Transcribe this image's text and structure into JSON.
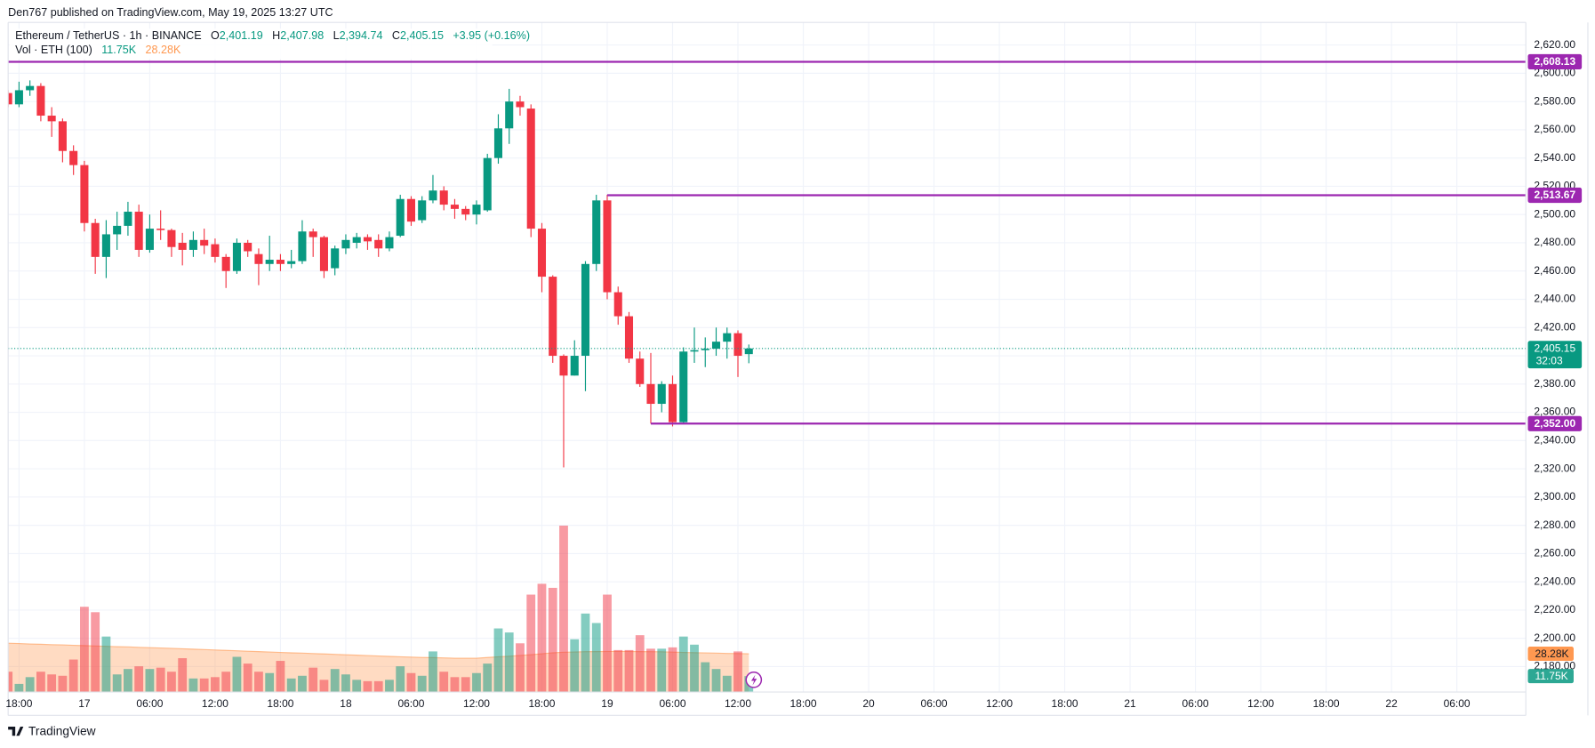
{
  "chart_data": {
    "type": "candlestick",
    "publisher": "Den767 published on TradingView.com, May 19, 2025 13:27 UTC",
    "title": "Ethereum / TetherUS · 1h · BINANCE",
    "ohlc_legend": [
      {
        "key": "O",
        "label": "2,401.19"
      },
      {
        "key": "H",
        "label": "2,407.98"
      },
      {
        "key": "L",
        "label": "2,394.74"
      },
      {
        "key": "C",
        "label": "2,405.15"
      }
    ],
    "change_label": "+3.95 (+0.16%)",
    "up_color": "#089981",
    "down_color": "#f23645",
    "x": [
      "16 17:00",
      "16 18:00",
      "16 19:00",
      "16 20:00",
      "16 21:00",
      "16 22:00",
      "16 23:00",
      "17 00:00",
      "17 01:00",
      "17 02:00",
      "17 03:00",
      "17 04:00",
      "17 05:00",
      "17 06:00",
      "17 07:00",
      "17 08:00",
      "17 09:00",
      "17 10:00",
      "17 11:00",
      "17 12:00",
      "17 13:00",
      "17 14:00",
      "17 15:00",
      "17 16:00",
      "17 17:00",
      "17 18:00",
      "17 19:00",
      "17 20:00",
      "17 21:00",
      "17 22:00",
      "17 23:00",
      "18 00:00",
      "18 01:00",
      "18 02:00",
      "18 03:00",
      "18 04:00",
      "18 05:00",
      "18 06:00",
      "18 07:00",
      "18 08:00",
      "18 09:00",
      "18 10:00",
      "18 11:00",
      "18 12:00",
      "18 13:00",
      "18 14:00",
      "18 15:00",
      "18 16:00",
      "18 17:00",
      "18 18:00",
      "18 19:00",
      "18 20:00",
      "18 21:00",
      "18 22:00",
      "18 23:00",
      "19 00:00",
      "19 01:00",
      "19 02:00",
      "19 03:00",
      "19 04:00",
      "19 05:00",
      "19 06:00",
      "19 07:00",
      "19 08:00",
      "19 09:00",
      "19 10:00",
      "19 11:00",
      "19 12:00",
      "19 13:00"
    ],
    "open": [
      2586,
      2578,
      2588,
      2591,
      2570,
      2566,
      2545,
      2535,
      2494,
      2470,
      2486,
      2492,
      2502,
      2475,
      2490,
      2489,
      2480,
      2475,
      2482,
      2479,
      2470,
      2460,
      2480,
      2472,
      2465,
      2468,
      2465,
      2467,
      2488,
      2484,
      2462,
      2476,
      2480,
      2484,
      2482,
      2476,
      2485,
      2511,
      2496,
      2510,
      2517,
      2507,
      2504,
      2500,
      2503,
      2540,
      2561,
      2580,
      2575,
      2490,
      2456,
      2400,
      2386,
      2400,
      2465,
      2510,
      2445,
      2428,
      2398,
      2380,
      2366,
      2380,
      2353,
      2403,
      2404,
      2405,
      2410,
      2416,
      2401.19
    ],
    "high": [
      2588,
      2594,
      2595,
      2593,
      2576,
      2568,
      2549,
      2538,
      2497,
      2496,
      2502,
      2509,
      2507,
      2500,
      2503,
      2490,
      2487,
      2488,
      2490,
      2483,
      2472,
      2483,
      2482,
      2476,
      2485,
      2472,
      2475,
      2496,
      2490,
      2485,
      2478,
      2486,
      2487,
      2486,
      2486,
      2488,
      2514,
      2513,
      2513,
      2528,
      2520,
      2511,
      2506,
      2510,
      2543,
      2571,
      2589,
      2584,
      2578,
      2494,
      2457,
      2401,
      2411,
      2467,
      2514,
      2514,
      2449,
      2431,
      2403,
      2402,
      2382,
      2386,
      2406,
      2420,
      2413,
      2420,
      2420,
      2418,
      2407.98
    ],
    "low": [
      2576,
      2576,
      2584,
      2566,
      2555,
      2537,
      2528,
      2488,
      2458,
      2455,
      2475,
      2485,
      2470,
      2473,
      2482,
      2470,
      2464,
      2470,
      2472,
      2466,
      2448,
      2458,
      2470,
      2450,
      2460,
      2460,
      2462,
      2465,
      2470,
      2455,
      2457,
      2472,
      2476,
      2475,
      2470,
      2474,
      2484,
      2492,
      2494,
      2508,
      2503,
      2497,
      2496,
      2493,
      2502,
      2536,
      2550,
      2570,
      2484,
      2445,
      2395,
      2321,
      2386,
      2375,
      2460,
      2440,
      2422,
      2395,
      2378,
      2352,
      2360,
      2350,
      2352,
      2395,
      2392,
      2400,
      2398,
      2385,
      2394.74
    ],
    "close": [
      2578,
      2588,
      2591,
      2570,
      2566,
      2545,
      2535,
      2494,
      2470,
      2486,
      2492,
      2502,
      2475,
      2490,
      2489,
      2477,
      2475,
      2482,
      2478,
      2470,
      2460,
      2480,
      2474,
      2465,
      2468,
      2465,
      2467,
      2488,
      2484,
      2460,
      2476,
      2482,
      2484,
      2481,
      2476,
      2484,
      2511,
      2495,
      2510,
      2517,
      2507,
      2504,
      2500,
      2507,
      2540,
      2561,
      2580,
      2576,
      2490,
      2456,
      2400,
      2386,
      2400,
      2465,
      2510,
      2445,
      2428,
      2398,
      2380,
      2366,
      2380,
      2353,
      2403,
      2404,
      2405,
      2410,
      2416,
      2400,
      2405.15
    ],
    "volume": {
      "name": "Vol · ETH (100)",
      "values": [
        15,
        6,
        11,
        15,
        13,
        12,
        24,
        63,
        59,
        41,
        13,
        17,
        19,
        17,
        18,
        15,
        25,
        10,
        10,
        11,
        15,
        26,
        21,
        15,
        14,
        23,
        10,
        12,
        18,
        9,
        17,
        13,
        9,
        8,
        8,
        9,
        19,
        14,
        12,
        30,
        15,
        11,
        11,
        14,
        21,
        47,
        44,
        36,
        72,
        80,
        77,
        123,
        39,
        58,
        51,
        72,
        31,
        31,
        42,
        32,
        32,
        33,
        41,
        35,
        22,
        17,
        12,
        30,
        11.75
      ],
      "value_label": "11.75K",
      "ma_values": [
        36,
        35.8,
        35.5,
        35.3,
        35,
        34.8,
        34.5,
        34.3,
        34,
        33.8,
        33.5,
        33.3,
        33,
        32.8,
        32.5,
        32.3,
        32,
        31.7,
        31.4,
        31.1,
        30.8,
        30.5,
        30.2,
        29.9,
        29.6,
        29.3,
        29,
        28.7,
        28.4,
        28.1,
        27.8,
        27.5,
        27.2,
        26.9,
        26.6,
        26.3,
        26,
        25.8,
        25.6,
        25.4,
        25.2,
        25,
        25,
        25,
        25.5,
        26,
        26.5,
        27,
        27.6,
        28.3,
        29,
        29.4,
        29.6,
        29.8,
        29.9,
        30,
        30,
        30,
        29.9,
        29.8,
        29.7,
        29.5,
        29.3,
        29.1,
        28.9,
        28.7,
        28.5,
        28.4,
        28.28
      ],
      "ma_label": "28.28K",
      "ma_color": "#ff9850",
      "ylim": [
        0,
        495
      ]
    },
    "ylim": [
      2162,
      2636
    ],
    "yticks": [
      {
        "value": 2180,
        "label": "2,180.00"
      },
      {
        "value": 2200,
        "label": "2,200.00"
      },
      {
        "value": 2220,
        "label": "2,220.00"
      },
      {
        "value": 2240,
        "label": "2,240.00"
      },
      {
        "value": 2260,
        "label": "2,260.00"
      },
      {
        "value": 2280,
        "label": "2,280.00"
      },
      {
        "value": 2300,
        "label": "2,300.00"
      },
      {
        "value": 2320,
        "label": "2,320.00"
      },
      {
        "value": 2340,
        "label": "2,340.00"
      },
      {
        "value": 2360,
        "label": "2,360.00"
      },
      {
        "value": 2380,
        "label": "2,380.00"
      },
      {
        "value": 2400,
        "label": "2,400.00"
      },
      {
        "value": 2420,
        "label": "2,420.00"
      },
      {
        "value": 2440,
        "label": "2,440.00"
      },
      {
        "value": 2460,
        "label": "2,460.00"
      },
      {
        "value": 2480,
        "label": "2,480.00"
      },
      {
        "value": 2500,
        "label": "2,500.00"
      },
      {
        "value": 2520,
        "label": "2,520.00"
      },
      {
        "value": 2540,
        "label": "2,540.00"
      },
      {
        "value": 2560,
        "label": "2,560.00"
      },
      {
        "value": 2580,
        "label": "2,580.00"
      },
      {
        "value": 2600,
        "label": "2,600.00"
      },
      {
        "value": 2620,
        "label": "2,620.00"
      }
    ],
    "xlim": [
      "16 17:00",
      "22 12:20"
    ],
    "xticks": [
      {
        "value": "16 18:00",
        "label": "18:00"
      },
      {
        "value": "17 00:00",
        "label": "17"
      },
      {
        "value": "17 06:00",
        "label": "06:00"
      },
      {
        "value": "17 12:00",
        "label": "12:00"
      },
      {
        "value": "17 18:00",
        "label": "18:00"
      },
      {
        "value": "18 00:00",
        "label": "18"
      },
      {
        "value": "18 06:00",
        "label": "06:00"
      },
      {
        "value": "18 12:00",
        "label": "12:00"
      },
      {
        "value": "18 18:00",
        "label": "18:00"
      },
      {
        "value": "19 00:00",
        "label": "19"
      },
      {
        "value": "19 06:00",
        "label": "06:00"
      },
      {
        "value": "19 12:00",
        "label": "12:00"
      },
      {
        "value": "19 18:00",
        "label": "18:00"
      },
      {
        "value": "20 00:00",
        "label": "20"
      },
      {
        "value": "20 06:00",
        "label": "06:00"
      },
      {
        "value": "20 12:00",
        "label": "12:00"
      },
      {
        "value": "20 18:00",
        "label": "18:00"
      },
      {
        "value": "21 00:00",
        "label": "21"
      },
      {
        "value": "21 06:00",
        "label": "06:00"
      },
      {
        "value": "21 12:00",
        "label": "12:00"
      },
      {
        "value": "21 18:00",
        "label": "18:00"
      },
      {
        "value": "22 00:00",
        "label": "22"
      },
      {
        "value": "22 06:00",
        "label": "06:00"
      }
    ],
    "grid": true,
    "levels": [
      {
        "value": 2608.13,
        "label": "2,608.13",
        "from": "16 17:00"
      },
      {
        "value": 2513.67,
        "label": "2,513.67",
        "from": "19 00:00"
      },
      {
        "value": 2352.0,
        "label": "2,352.00",
        "from": "19 04:00"
      }
    ],
    "level_color": "#9c27b0",
    "last_price": {
      "value": 2405.15,
      "label": "2,405.15",
      "countdown": "32:03"
    },
    "footer": "TradingView"
  }
}
